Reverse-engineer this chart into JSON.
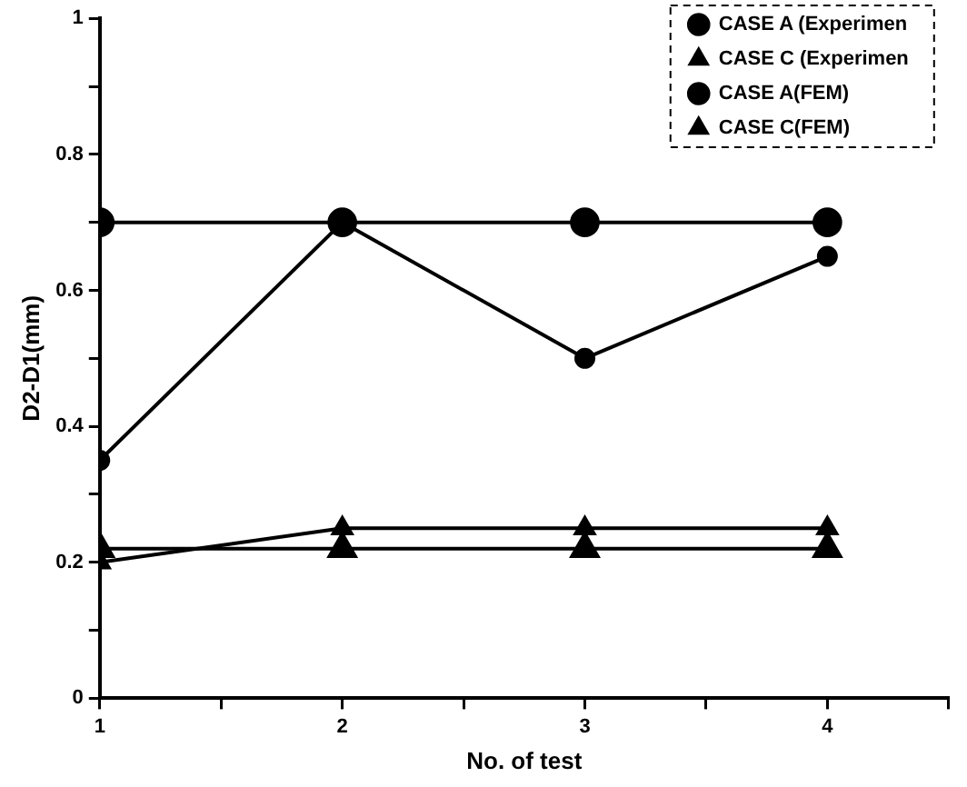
{
  "chart_data": {
    "type": "line",
    "xlabel": "No. of test",
    "ylabel": "D2-D1(mm)",
    "x": [
      1,
      2,
      3,
      4
    ],
    "series": [
      {
        "name": "CASE A (Experimen",
        "color": "#000000",
        "marker": "circle",
        "values": [
          0.35,
          0.7,
          0.5,
          0.65
        ]
      },
      {
        "name": "CASE C (Experimen",
        "color": "#000000",
        "marker": "triangle",
        "values": [
          0.2,
          0.25,
          0.25,
          0.25
        ]
      },
      {
        "name": "CASE A(FEM)",
        "color": "#000000",
        "marker": "circle",
        "values": [
          0.7,
          0.7,
          0.7,
          0.7
        ]
      },
      {
        "name": "CASE C(FEM)",
        "color": "#000000",
        "marker": "triangle",
        "values": [
          0.22,
          0.22,
          0.22,
          0.22
        ]
      }
    ],
    "xlim": [
      1,
      4.5
    ],
    "xticks": [
      1,
      {
        "value": 1.5,
        "label": null
      },
      2,
      {
        "value": 2.5,
        "label": null
      },
      3,
      {
        "value": 3.5,
        "label": null
      },
      4,
      {
        "value": 4.5,
        "label": null
      }
    ],
    "ylim": [
      0,
      1
    ],
    "yticks": [
      0,
      {
        "value": 0.1,
        "label": null
      },
      0.2,
      {
        "value": 0.3,
        "label": null
      },
      0.4,
      {
        "value": 0.5,
        "label": null
      },
      0.6,
      {
        "value": 0.7,
        "label": null
      },
      0.8,
      {
        "value": 0.9,
        "label": null
      },
      1
    ],
    "grid": false,
    "legend": "top right",
    "line_style": "solid"
  }
}
